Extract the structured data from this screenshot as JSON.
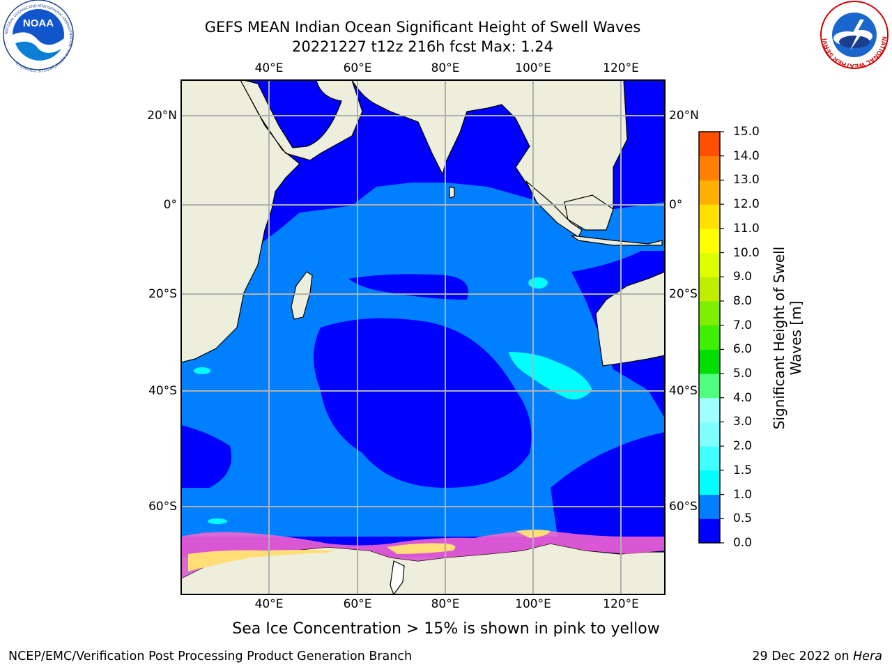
{
  "title": {
    "line1": "GEFS MEAN Indian Ocean Significant Height of Swell Waves",
    "line2": "20221227 t12z 216h fcst   Max: 1.24"
  },
  "map": {
    "lon_ticks_top": [
      "40°E",
      "60°E",
      "80°E",
      "100°E",
      "120°E"
    ],
    "lon_ticks_bottom": [
      "40°E",
      "60°E",
      "80°E",
      "100°E",
      "120°E"
    ],
    "lat_ticks_left": [
      "20°N",
      "0°",
      "20°S",
      "40°S",
      "60°S"
    ],
    "lat_ticks_right": [
      "20°N",
      "0°",
      "20°S",
      "40°S",
      "60°S"
    ],
    "colors": {
      "land": "#eeeedd",
      "ocean_0_05": "#0000ff",
      "ocean_05_10": "#0080ff",
      "ocean_10_15": "#00ffff",
      "no_data": "#ffffff",
      "grid": "#b0b0b0",
      "sea_ice": "#ff66cc"
    }
  },
  "colorbar": {
    "label_line1": "Significant Height of Swell",
    "label_line2": "Waves [m]",
    "ticks": [
      "15.0",
      "14.0",
      "13.0",
      "12.0",
      "11.0",
      "10.0",
      "9.0",
      "8.0",
      "7.0",
      "6.0",
      "5.0",
      "4.0",
      "3.0",
      "2.0",
      "1.5",
      "1.0",
      "0.5",
      "0.0"
    ],
    "colors_bottom_to_top": [
      "#0000ff",
      "#0080ff",
      "#00ffff",
      "#40ffff",
      "#80ffff",
      "#a0ffff",
      "#50ff80",
      "#00dd00",
      "#40ee00",
      "#80ee00",
      "#c0ee00",
      "#ddff00",
      "#ffff00",
      "#ffe000",
      "#ffb000",
      "#ff8000",
      "#ff5000",
      "#ff2000",
      "#ff0000"
    ]
  },
  "caption": "Sea Ice Concentration > 15% is shown in pink to yellow",
  "footer": {
    "left": "NCEP/EMC/Verification Post Processing Product Generation Branch",
    "right_prefix": "29 Dec 2022 on ",
    "right_host": "Hera"
  },
  "logos": {
    "noaa_text": "NOAA",
    "noaa_ring_text": "NATIONAL OCEANIC AND ATMOSPHERIC ADMINISTRATION · U.S. DEPARTMENT OF COMMERCE",
    "nws_ring_text": "NATIONAL WEATHER SERVICE"
  }
}
